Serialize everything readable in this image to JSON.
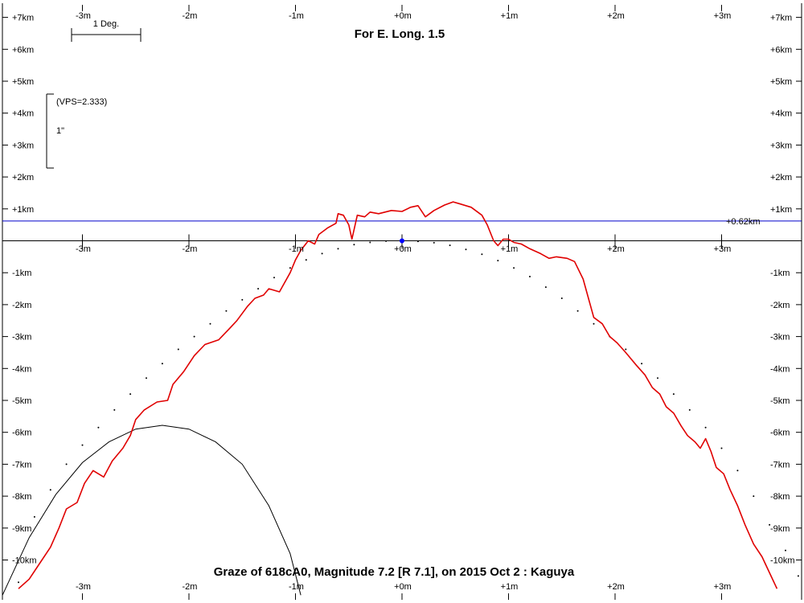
{
  "chart_data": {
    "type": "line",
    "title": "For E. Long. 1.5",
    "footer": "Graze of  618cA0,  Magnitude 7.2 [R 7.1],  on 2015 Oct  2  :  Kaguya",
    "x_tick_labels": [
      "-3m",
      "-2m",
      "-1m",
      "+0m",
      "+1m",
      "+2m",
      "+3m"
    ],
    "x_ticks": [
      -3,
      -2,
      -1,
      0,
      1,
      2,
      3
    ],
    "y_tick_labels_left": [
      "+7km",
      "+6km",
      "+5km",
      "+4km",
      "+3km",
      "+2km",
      "+1km",
      "-1km",
      "-2km",
      "-3km",
      "-4km",
      "-5km",
      "-6km",
      "-7km",
      "-8km",
      "-9km",
      "-10km"
    ],
    "y_tick_labels_right": [
      "+7km",
      "+6km",
      "+5km",
      "+4km",
      "+3km",
      "+2km",
      "+1km",
      "-1km",
      "-2km",
      "-3km",
      "-4km",
      "-5km",
      "-6km",
      "-7km",
      "-8km",
      "-9km",
      "-10km"
    ],
    "y_ticks": [
      7,
      6,
      5,
      4,
      3,
      2,
      1,
      -1,
      -2,
      -3,
      -4,
      -5,
      -6,
      -7,
      -8,
      -9,
      -10
    ],
    "xlim": [
      -3.75,
      3.75
    ],
    "ylim": [
      -11.1,
      7.5
    ],
    "scale_bar_label": "1 Deg.",
    "vps_label": "(VPS=2.333)",
    "vps_unit_label": "1\"",
    "reference_line_label": "+0.62km",
    "reference_line_value": 0.62,
    "colors": {
      "profile": "#e00000",
      "reference_line": "#0000cc",
      "center_point": "#0000ff",
      "axis": "#000000"
    },
    "center_point": {
      "x": 0,
      "y": 0
    },
    "limb_profile": {
      "name": "",
      "points": [
        [
          -3.6,
          -10.9
        ],
        [
          -3.5,
          -10.6
        ],
        [
          -3.4,
          -10.1
        ],
        [
          -3.3,
          -9.6
        ],
        [
          -3.22,
          -9.0
        ],
        [
          -3.15,
          -8.4
        ],
        [
          -3.05,
          -8.2
        ],
        [
          -2.98,
          -7.6
        ],
        [
          -2.9,
          -7.2
        ],
        [
          -2.8,
          -7.4
        ],
        [
          -2.72,
          -6.9
        ],
        [
          -2.62,
          -6.5
        ],
        [
          -2.55,
          -6.1
        ],
        [
          -2.5,
          -5.6
        ],
        [
          -2.42,
          -5.3
        ],
        [
          -2.3,
          -5.05
        ],
        [
          -2.2,
          -5.0
        ],
        [
          -2.15,
          -4.5
        ],
        [
          -2.05,
          -4.1
        ],
        [
          -1.95,
          -3.6
        ],
        [
          -1.85,
          -3.25
        ],
        [
          -1.72,
          -3.1
        ],
        [
          -1.62,
          -2.75
        ],
        [
          -1.55,
          -2.5
        ],
        [
          -1.45,
          -2.05
        ],
        [
          -1.38,
          -1.8
        ],
        [
          -1.3,
          -1.7
        ],
        [
          -1.25,
          -1.5
        ],
        [
          -1.15,
          -1.6
        ],
        [
          -1.05,
          -1.0
        ],
        [
          -1.0,
          -0.6
        ],
        [
          -0.95,
          -0.3
        ],
        [
          -0.88,
          -0.0
        ],
        [
          -0.82,
          -0.1
        ],
        [
          -0.78,
          0.2
        ],
        [
          -0.7,
          0.4
        ],
        [
          -0.62,
          0.55
        ],
        [
          -0.6,
          0.85
        ],
        [
          -0.55,
          0.8
        ],
        [
          -0.5,
          0.5
        ],
        [
          -0.47,
          0.05
        ],
        [
          -0.42,
          0.8
        ],
        [
          -0.35,
          0.75
        ],
        [
          -0.3,
          0.9
        ],
        [
          -0.22,
          0.85
        ],
        [
          -0.1,
          0.95
        ],
        [
          0.0,
          0.92
        ],
        [
          0.08,
          1.05
        ],
        [
          0.15,
          1.1
        ],
        [
          0.22,
          0.75
        ],
        [
          0.3,
          0.95
        ],
        [
          0.4,
          1.12
        ],
        [
          0.48,
          1.22
        ],
        [
          0.55,
          1.15
        ],
        [
          0.65,
          1.05
        ],
        [
          0.75,
          0.8
        ],
        [
          0.8,
          0.5
        ],
        [
          0.86,
          0.0
        ],
        [
          0.9,
          -0.15
        ],
        [
          0.95,
          0.05
        ],
        [
          1.0,
          0.05
        ],
        [
          1.05,
          -0.05
        ],
        [
          1.12,
          -0.1
        ],
        [
          1.2,
          -0.25
        ],
        [
          1.3,
          -0.4
        ],
        [
          1.38,
          -0.55
        ],
        [
          1.45,
          -0.5
        ],
        [
          1.55,
          -0.55
        ],
        [
          1.62,
          -0.65
        ],
        [
          1.7,
          -1.2
        ],
        [
          1.75,
          -1.8
        ],
        [
          1.8,
          -2.4
        ],
        [
          1.88,
          -2.6
        ],
        [
          1.95,
          -3.0
        ],
        [
          2.02,
          -3.2
        ],
        [
          2.1,
          -3.5
        ],
        [
          2.2,
          -3.9
        ],
        [
          2.28,
          -4.2
        ],
        [
          2.35,
          -4.6
        ],
        [
          2.42,
          -4.8
        ],
        [
          2.48,
          -5.2
        ],
        [
          2.55,
          -5.4
        ],
        [
          2.62,
          -5.8
        ],
        [
          2.68,
          -6.1
        ],
        [
          2.75,
          -6.3
        ],
        [
          2.8,
          -6.5
        ],
        [
          2.85,
          -6.2
        ],
        [
          2.9,
          -6.6
        ],
        [
          2.95,
          -7.1
        ],
        [
          3.02,
          -7.3
        ],
        [
          3.08,
          -7.8
        ],
        [
          3.15,
          -8.3
        ],
        [
          3.22,
          -8.9
        ],
        [
          3.3,
          -9.5
        ],
        [
          3.38,
          -9.9
        ],
        [
          3.45,
          -10.4
        ],
        [
          3.52,
          -10.9
        ]
      ]
    },
    "mean_limb_points": [
      [
        -3.6,
        -10.7
      ],
      [
        -3.45,
        -8.65
      ],
      [
        -3.3,
        -7.8
      ],
      [
        -3.15,
        -7.0
      ],
      [
        -3.0,
        -6.4
      ],
      [
        -2.85,
        -5.85
      ],
      [
        -2.7,
        -5.3
      ],
      [
        -2.55,
        -4.8
      ],
      [
        -2.4,
        -4.3
      ],
      [
        -2.25,
        -3.85
      ],
      [
        -2.1,
        -3.4
      ],
      [
        -1.95,
        -3.0
      ],
      [
        -1.8,
        -2.6
      ],
      [
        -1.65,
        -2.2
      ],
      [
        -1.5,
        -1.85
      ],
      [
        -1.35,
        -1.5
      ],
      [
        -1.2,
        -1.15
      ],
      [
        -1.05,
        -0.85
      ],
      [
        -0.9,
        -0.6
      ],
      [
        -0.75,
        -0.4
      ],
      [
        -0.6,
        -0.25
      ],
      [
        -0.45,
        -0.12
      ],
      [
        -0.3,
        -0.05
      ],
      [
        -0.15,
        -0.01
      ],
      [
        0.15,
        -0.02
      ],
      [
        0.3,
        -0.06
      ],
      [
        0.45,
        -0.14
      ],
      [
        0.6,
        -0.27
      ],
      [
        0.75,
        -0.42
      ],
      [
        0.9,
        -0.62
      ],
      [
        1.05,
        -0.85
      ],
      [
        1.2,
        -1.12
      ],
      [
        1.35,
        -1.45
      ],
      [
        1.5,
        -1.8
      ],
      [
        1.65,
        -2.2
      ],
      [
        1.8,
        -2.6
      ],
      [
        1.95,
        -3.0
      ],
      [
        2.1,
        -3.4
      ],
      [
        2.25,
        -3.85
      ],
      [
        2.4,
        -4.3
      ],
      [
        2.55,
        -4.8
      ],
      [
        2.7,
        -5.3
      ],
      [
        2.85,
        -5.85
      ],
      [
        3.0,
        -6.5
      ],
      [
        3.15,
        -7.2
      ],
      [
        3.3,
        -8.0
      ],
      [
        3.45,
        -8.9
      ],
      [
        3.6,
        -9.7
      ],
      [
        3.72,
        -10.5
      ]
    ],
    "shadow_curve": {
      "name": "",
      "points": [
        [
          -3.75,
          -11.1
        ],
        [
          -3.5,
          -9.3
        ],
        [
          -3.25,
          -7.95
        ],
        [
          -3.0,
          -6.95
        ],
        [
          -2.75,
          -6.3
        ],
        [
          -2.5,
          -5.9
        ],
        [
          -2.25,
          -5.78
        ],
        [
          -2.0,
          -5.9
        ],
        [
          -1.75,
          -6.3
        ],
        [
          -1.5,
          -7.0
        ],
        [
          -1.25,
          -8.3
        ],
        [
          -1.05,
          -9.8
        ],
        [
          -0.95,
          -11.1
        ]
      ]
    }
  }
}
